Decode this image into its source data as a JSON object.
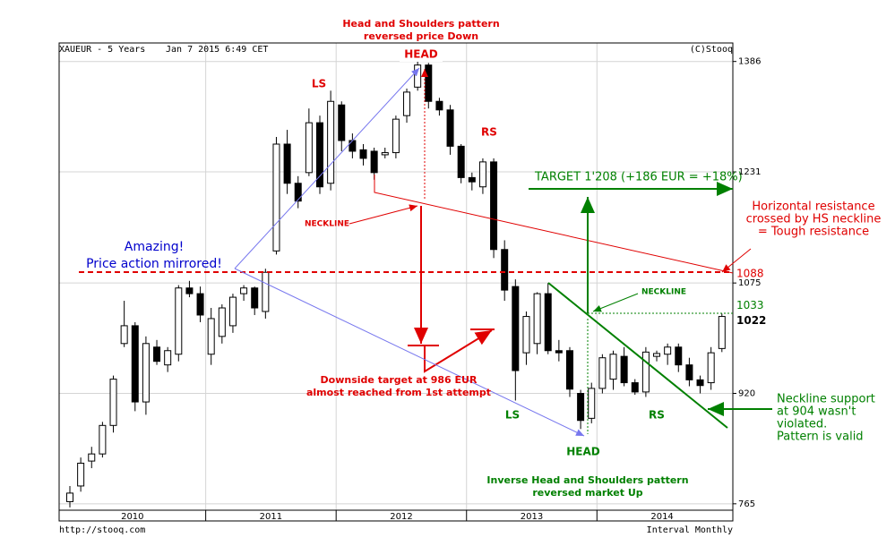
{
  "chart_data": {
    "type": "candlestick",
    "title": "XAUEUR - 5 Years",
    "date": "Jan 7 2015 6:49 CET",
    "credit": "(C)Stooq",
    "url": "http://stooq.com",
    "interval": "Interval Monthly",
    "ylim": [
      756,
      1412
    ],
    "yticks": [
      765,
      920,
      1075,
      1231,
      1386
    ],
    "grid": true,
    "years": [
      "2010",
      "2011",
      "2012",
      "2013",
      "2014"
    ],
    "candles": [
      [
        768,
        790,
        760,
        780
      ],
      [
        790,
        830,
        782,
        822
      ],
      [
        825,
        845,
        815,
        835
      ],
      [
        835,
        880,
        830,
        875
      ],
      [
        875,
        945,
        865,
        940
      ],
      [
        990,
        1050,
        985,
        1015
      ],
      [
        1015,
        1020,
        895,
        908
      ],
      [
        908,
        1000,
        890,
        990
      ],
      [
        985,
        995,
        960,
        965
      ],
      [
        960,
        985,
        950,
        980
      ],
      [
        975,
        1072,
        965,
        1068
      ],
      [
        1068,
        1078,
        1055,
        1060
      ],
      [
        1060,
        1070,
        1020,
        1030
      ],
      [
        975,
        1040,
        960,
        1025
      ],
      [
        1000,
        1045,
        990,
        1040
      ],
      [
        1015,
        1060,
        1005,
        1055
      ],
      [
        1060,
        1072,
        1050,
        1068
      ],
      [
        1068,
        1070,
        1030,
        1040
      ],
      [
        1035,
        1095,
        1025,
        1090
      ],
      [
        1120,
        1280,
        1115,
        1270
      ],
      [
        1270,
        1290,
        1200,
        1215
      ],
      [
        1215,
        1225,
        1180,
        1190
      ],
      [
        1230,
        1320,
        1225,
        1300
      ],
      [
        1300,
        1310,
        1200,
        1210
      ],
      [
        1215,
        1345,
        1205,
        1330
      ],
      [
        1325,
        1330,
        1260,
        1275
      ],
      [
        1275,
        1285,
        1250,
        1260
      ],
      [
        1262,
        1270,
        1240,
        1250
      ],
      [
        1260,
        1265,
        1220,
        1230
      ],
      [
        1255,
        1265,
        1250,
        1258
      ],
      [
        1258,
        1310,
        1250,
        1305
      ],
      [
        1310,
        1348,
        1300,
        1343
      ],
      [
        1350,
        1386,
        1345,
        1381
      ],
      [
        1381,
        1384,
        1320,
        1330
      ],
      [
        1330,
        1335,
        1310,
        1318
      ],
      [
        1318,
        1325,
        1255,
        1267
      ],
      [
        1267,
        1270,
        1215,
        1223
      ],
      [
        1223,
        1230,
        1205,
        1217
      ],
      [
        1210,
        1250,
        1200,
        1245
      ],
      [
        1245,
        1250,
        1110,
        1122
      ],
      [
        1122,
        1135,
        1050,
        1065
      ],
      [
        1070,
        1080,
        910,
        952
      ],
      [
        977,
        1035,
        960,
        1028
      ],
      [
        990,
        1062,
        975,
        1060
      ],
      [
        1060,
        1075,
        975,
        980
      ],
      [
        980,
        995,
        965,
        977
      ],
      [
        980,
        985,
        915,
        926
      ],
      [
        920,
        925,
        870,
        882
      ],
      [
        885,
        935,
        878,
        927
      ],
      [
        927,
        975,
        920,
        970
      ],
      [
        940,
        980,
        925,
        975
      ],
      [
        972,
        985,
        930,
        935
      ],
      [
        935,
        940,
        918,
        922
      ],
      [
        922,
        985,
        915,
        978
      ],
      [
        972,
        980,
        965,
        976
      ],
      [
        975,
        990,
        960,
        985
      ],
      [
        985,
        990,
        950,
        960
      ],
      [
        960,
        970,
        930,
        939
      ],
      [
        939,
        945,
        920,
        931
      ],
      [
        935,
        985,
        925,
        977
      ],
      [
        983,
        1032,
        978,
        1028
      ]
    ],
    "price_labels": [
      1088,
      1033,
      1022
    ],
    "annotations": [
      {
        "lines": [
          "Head and Shoulders pattern",
          "reversed price Down"
        ]
      },
      {
        "lines": [
          "HEAD"
        ]
      },
      {
        "lines": [
          "LS"
        ]
      },
      {
        "lines": [
          "RS"
        ]
      },
      {
        "lines": [
          "NECKLINE"
        ]
      },
      {
        "lines": [
          "Amazing!",
          "Price action mirrored!"
        ]
      },
      {
        "lines": [
          "TARGET 1'208 (+186 EUR = +18%)"
        ]
      },
      {
        "lines": [
          "Horizontal resistance",
          "crossed by HS neckline",
          "= Tough resistance"
        ]
      },
      {
        "lines": [
          "NECKLINE"
        ]
      },
      {
        "lines": [
          "Downside target at 986 EUR",
          "almost reached from 1st attempt"
        ]
      },
      {
        "lines": [
          "LS"
        ]
      },
      {
        "lines": [
          "RS"
        ]
      },
      {
        "lines": [
          "HEAD"
        ]
      },
      {
        "lines": [
          "Inverse Head and Shoulders pattern",
          "reversed market Up"
        ]
      },
      {
        "lines": [
          "Neckline support",
          "at 904 wasn't",
          "violated.",
          "Pattern is valid"
        ]
      }
    ]
  }
}
